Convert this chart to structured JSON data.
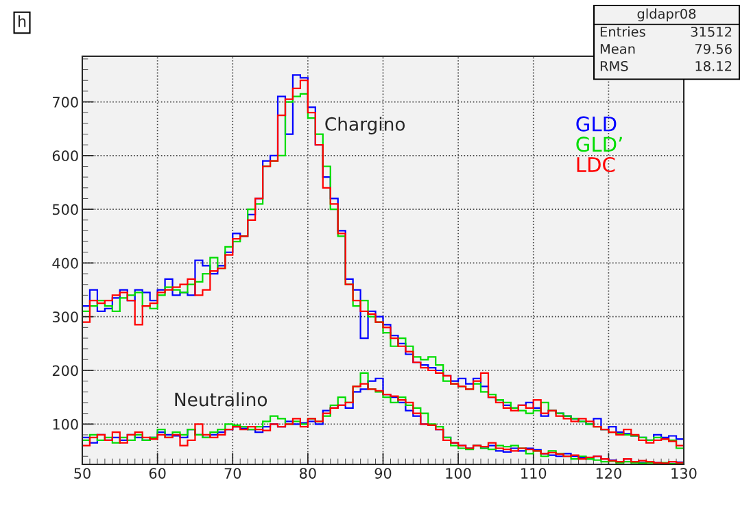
{
  "chart_data": {
    "type": "histogram",
    "title": "h",
    "bins": [
      50,
      51,
      52,
      53,
      54,
      55,
      56,
      57,
      58,
      59,
      60,
      61,
      62,
      63,
      64,
      65,
      66,
      67,
      68,
      69,
      70,
      71,
      72,
      73,
      74,
      75,
      76,
      77,
      78,
      79,
      80,
      81,
      82,
      83,
      84,
      85,
      86,
      87,
      88,
      89,
      90,
      91,
      92,
      93,
      94,
      95,
      96,
      97,
      98,
      99,
      100,
      101,
      102,
      103,
      104,
      105,
      106,
      107,
      108,
      109,
      110,
      111,
      112,
      113,
      114,
      115,
      116,
      117,
      118,
      119,
      120,
      121,
      122,
      123,
      124,
      125,
      126,
      127,
      128,
      129,
      130
    ],
    "series": [
      {
        "name": "GLD",
        "color": "#0000ff",
        "values": [
          320,
          350,
          310,
          315,
          335,
          350,
          330,
          350,
          345,
          330,
          350,
          370,
          340,
          345,
          340,
          405,
          395,
          380,
          395,
          420,
          455,
          450,
          490,
          520,
          590,
          600,
          710,
          640,
          750,
          745,
          690,
          620,
          560,
          520,
          460,
          370,
          350,
          260,
          310,
          300,
          285,
          265,
          250,
          230,
          215,
          210,
          205,
          200,
          190,
          180,
          185,
          175,
          185,
          170,
          150,
          145,
          135,
          130,
          135,
          140,
          130,
          115,
          125,
          120,
          115,
          110,
          105,
          100,
          110,
          90,
          95,
          85,
          82,
          78,
          75,
          70,
          80,
          75,
          78,
          72
        ]
      },
      {
        "name": "GLD’",
        "color": "#00dd00",
        "values": [
          310,
          320,
          330,
          320,
          310,
          335,
          340,
          345,
          320,
          315,
          340,
          355,
          350,
          345,
          360,
          365,
          380,
          410,
          390,
          430,
          440,
          450,
          500,
          510,
          580,
          590,
          600,
          700,
          710,
          715,
          670,
          640,
          580,
          500,
          450,
          360,
          320,
          330,
          300,
          290,
          270,
          245,
          260,
          245,
          225,
          220,
          225,
          210,
          180,
          175,
          170,
          165,
          175,
          160,
          155,
          145,
          140,
          130,
          125,
          120,
          125,
          140,
          125,
          120,
          115,
          110,
          105,
          100,
          95,
          90,
          85,
          82,
          80,
          78,
          75,
          70,
          75,
          72,
          70,
          55
        ]
      },
      {
        "name": "LDC",
        "color": "#ff0000",
        "values": [
          290,
          330,
          325,
          330,
          340,
          345,
          330,
          285,
          320,
          325,
          345,
          350,
          355,
          360,
          370,
          340,
          350,
          385,
          390,
          415,
          445,
          450,
          480,
          520,
          580,
          590,
          675,
          705,
          725,
          740,
          680,
          620,
          540,
          510,
          455,
          360,
          330,
          310,
          305,
          290,
          280,
          260,
          245,
          235,
          215,
          205,
          200,
          195,
          190,
          175,
          170,
          165,
          180,
          195,
          150,
          140,
          130,
          125,
          135,
          130,
          145,
          120,
          125,
          115,
          110,
          105,
          110,
          105,
          95,
          90,
          85,
          80,
          90,
          80,
          70,
          65,
          70,
          72,
          68,
          60
        ]
      },
      {
        "color": "#0000fe",
        "values": [
          75,
          65,
          80,
          70,
          75,
          70,
          80,
          75,
          70,
          75,
          85,
          80,
          78,
          75,
          90,
          80,
          75,
          80,
          85,
          90,
          95,
          92,
          90,
          85,
          95,
          100,
          95,
          105,
          100,
          102,
          105,
          100,
          125,
          130,
          135,
          130,
          160,
          165,
          180,
          185,
          155,
          150,
          140,
          125,
          115,
          100,
          98,
          90,
          75,
          65,
          60,
          55,
          60,
          55,
          60,
          50,
          48,
          55,
          50,
          55,
          52,
          45,
          42,
          40,
          45,
          40,
          38,
          35,
          40,
          35,
          33,
          30,
          35,
          30,
          28,
          30,
          28,
          27,
          30,
          29
        ]
      },
      {
        "color": "#00dc00",
        "values": [
          70,
          80,
          70,
          75,
          65,
          75,
          70,
          80,
          70,
          75,
          90,
          75,
          85,
          80,
          90,
          80,
          75,
          85,
          90,
          100,
          98,
          95,
          90,
          95,
          105,
          115,
          110,
          100,
          105,
          100,
          110,
          105,
          115,
          135,
          150,
          140,
          170,
          195,
          165,
          160,
          150,
          140,
          150,
          135,
          130,
          120,
          100,
          95,
          75,
          60,
          55,
          53,
          60,
          55,
          53,
          60,
          58,
          60,
          55,
          45,
          50,
          40,
          50,
          45,
          40,
          35,
          40,
          35,
          33,
          30,
          31,
          28,
          30,
          28,
          27,
          28,
          27,
          28,
          26,
          27
        ]
      },
      {
        "color": "#fe0000",
        "values": [
          60,
          75,
          80,
          70,
          85,
          65,
          80,
          85,
          75,
          72,
          80,
          75,
          80,
          60,
          70,
          100,
          80,
          75,
          80,
          90,
          95,
          90,
          95,
          90,
          88,
          100,
          95,
          100,
          110,
          95,
          110,
          105,
          120,
          130,
          135,
          140,
          170,
          175,
          165,
          162,
          155,
          152,
          145,
          140,
          120,
          100,
          98,
          90,
          70,
          65,
          60,
          55,
          60,
          58,
          65,
          55,
          53,
          50,
          55,
          53,
          50,
          45,
          47,
          44,
          40,
          42,
          35,
          38,
          40,
          35,
          32,
          30,
          35,
          30,
          32,
          30,
          28,
          27,
          30,
          28
        ]
      }
    ],
    "xlim": [
      50,
      130
    ],
    "ylim": [
      25,
      785
    ],
    "xticks": [
      50,
      60,
      70,
      80,
      90,
      100,
      110,
      120,
      130
    ],
    "yticks": [
      100,
      200,
      300,
      400,
      500,
      600,
      700
    ],
    "grid": true,
    "legend": "right",
    "annotations": [
      "Chargino",
      "Neutralino",
      "gldapr08",
      "Entries 31512",
      "Mean 79.56",
      "RMS 18.12"
    ]
  }
}
